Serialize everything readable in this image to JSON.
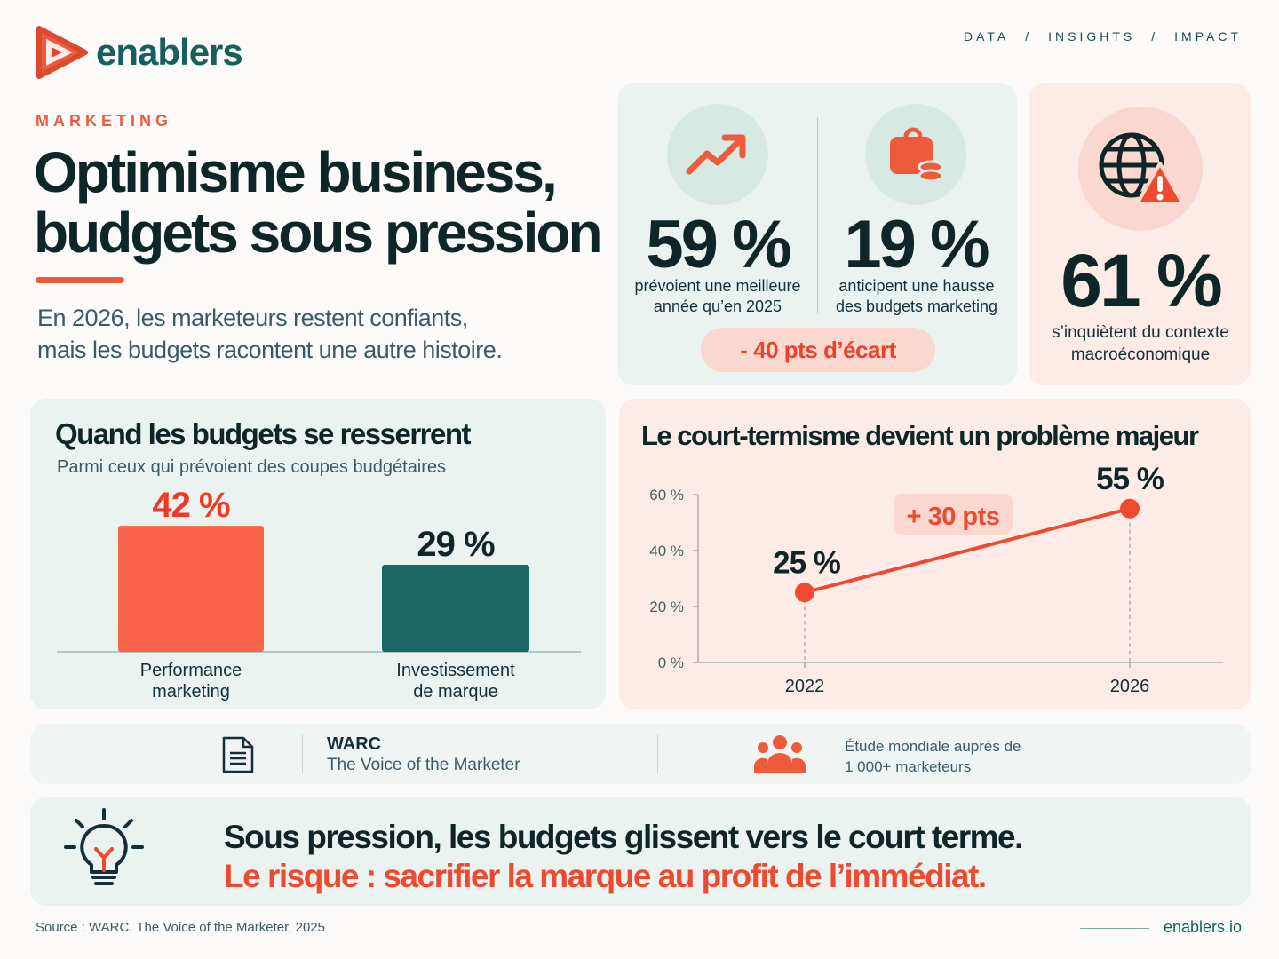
{
  "brand": {
    "logo_text": "enablers",
    "url": "enablers.io",
    "accent": "#ee5a3c",
    "teal": "#175f5c"
  },
  "nav": [
    "DATA",
    "/",
    "INSIGHTS",
    "/",
    "IMPACT"
  ],
  "header": {
    "kicker": "MARKETING",
    "title_line1": "Optimisme business,",
    "title_line2": "budgets sous pression",
    "intro_line1": "En 2026, les marketeurs restent confiants,",
    "intro_line2": "mais les budgets racontent une autre histoire."
  },
  "stats": {
    "optimism": {
      "value": "59 %",
      "label_line1": "prévoient une meilleure",
      "label_line2": "année qu’en 2025",
      "icon": "trend-up-icon"
    },
    "budget": {
      "value": "19 %",
      "label_line1": "anticipent une hausse",
      "label_line2": "des budgets marketing",
      "icon": "wallet-coins-icon"
    },
    "gap": "- 40 pts d’écart",
    "macro": {
      "value": "61 %",
      "label_line1": "s’inquiètent du contexte",
      "label_line2": "macroéconomique",
      "icon": "globe-warning-icon"
    }
  },
  "chart_data": [
    {
      "type": "bar",
      "title": "Quand les budgets se resserrent",
      "subtitle": "Parmi ceux qui prévoient des coupes budgétaires",
      "categories": [
        "Performance marketing",
        "Investissement de marque"
      ],
      "category_lines": [
        [
          "Performance",
          "marketing"
        ],
        [
          "Investissement",
          "de marque"
        ]
      ],
      "values": [
        42,
        29
      ],
      "value_labels": [
        "42 %",
        "29 %"
      ],
      "colors": [
        "#f9644a",
        "#1d6865"
      ],
      "label_colors": [
        "#ee3a24",
        "#0e2628"
      ],
      "ylim": [
        0,
        45
      ]
    },
    {
      "type": "line",
      "title": "Le court-termisme devient un problème majeur",
      "x": [
        "2022",
        "2026"
      ],
      "values": [
        25,
        55
      ],
      "value_labels": [
        "25 %",
        "55 %"
      ],
      "ytick_labels": [
        "0 %",
        "20 %",
        "40 %",
        "60 %"
      ],
      "ylim": [
        0,
        60
      ],
      "annotation": "+ 30 pts",
      "color": "#ee4a30"
    }
  ],
  "source_bar": {
    "doc_icon": "document-icon",
    "title": "WARC",
    "subtitle": "The Voice of the Marketer",
    "people_icon": "people-icon",
    "note_line1": "Étude mondiale auprès de",
    "note_line2": "1 000+ marketeurs"
  },
  "conclusion": {
    "icon": "lightbulb-icon",
    "line1": "Sous pression, les budgets glissent vers le court terme.",
    "line2": "Le risque : sacrifier la marque au profit de l’immédiat."
  },
  "footer": {
    "source": "Source : WARC, The Voice of the Marketer, 2025"
  }
}
